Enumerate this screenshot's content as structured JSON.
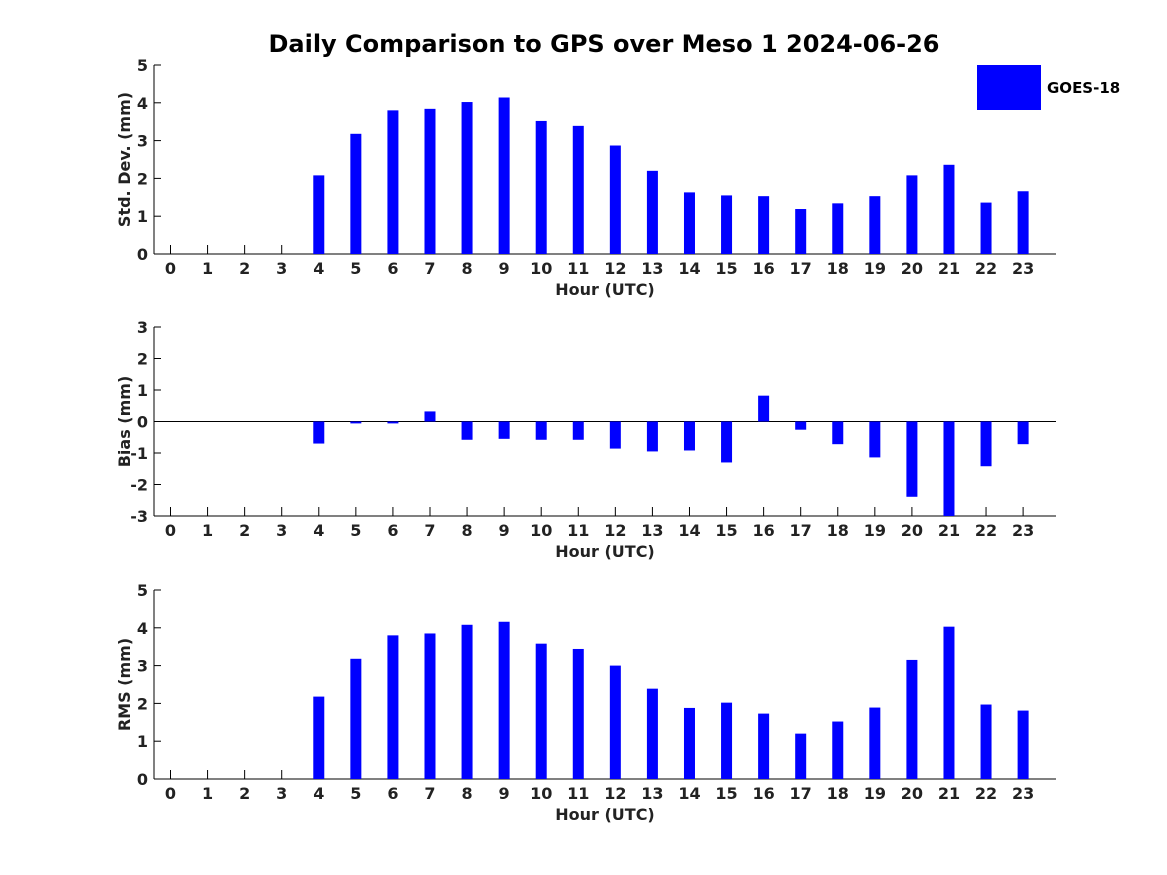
{
  "title": "Daily Comparison to GPS over Meso 1 2024-06-26",
  "legend": {
    "label": "GOES-18",
    "color": "#0000ff"
  },
  "chart_data": [
    {
      "type": "bar",
      "ylabel": "Std. Dev. (mm)",
      "xlabel": "Hour (UTC)",
      "categories": [
        "0",
        "1",
        "2",
        "3",
        "4",
        "5",
        "6",
        "7",
        "8",
        "9",
        "10",
        "11",
        "12",
        "13",
        "14",
        "15",
        "16",
        "17",
        "18",
        "19",
        "20",
        "21",
        "22",
        "23"
      ],
      "series": [
        {
          "name": "GOES-18",
          "values": [
            null,
            null,
            null,
            null,
            2.08,
            3.18,
            3.8,
            3.84,
            4.02,
            4.14,
            3.52,
            3.39,
            2.87,
            2.2,
            1.63,
            1.55,
            1.53,
            1.19,
            1.34,
            1.53,
            2.08,
            2.36,
            1.36,
            1.66
          ]
        }
      ],
      "ylim": [
        0,
        5
      ],
      "yticks": [
        0,
        1,
        2,
        3,
        4,
        5
      ]
    },
    {
      "type": "bar",
      "ylabel": "Bias (mm)",
      "xlabel": "Hour (UTC)",
      "categories": [
        "0",
        "1",
        "2",
        "3",
        "4",
        "5",
        "6",
        "7",
        "8",
        "9",
        "10",
        "11",
        "12",
        "13",
        "14",
        "15",
        "16",
        "17",
        "18",
        "19",
        "20",
        "21",
        "22",
        "23"
      ],
      "series": [
        {
          "name": "GOES-18",
          "values": [
            null,
            null,
            null,
            null,
            -0.7,
            -0.06,
            -0.06,
            0.32,
            -0.58,
            -0.55,
            -0.58,
            -0.58,
            -0.86,
            -0.95,
            -0.92,
            -1.3,
            0.82,
            -0.26,
            -0.72,
            -1.14,
            -2.39,
            -3.0,
            -1.42,
            -0.72
          ]
        }
      ],
      "ylim": [
        -3,
        3
      ],
      "yticks": [
        -3,
        -2,
        -1,
        0,
        1,
        2,
        3
      ]
    },
    {
      "type": "bar",
      "ylabel": "RMS (mm)",
      "xlabel": "Hour (UTC)",
      "categories": [
        "0",
        "1",
        "2",
        "3",
        "4",
        "5",
        "6",
        "7",
        "8",
        "9",
        "10",
        "11",
        "12",
        "13",
        "14",
        "15",
        "16",
        "17",
        "18",
        "19",
        "20",
        "21",
        "22",
        "23"
      ],
      "series": [
        {
          "name": "GOES-18",
          "values": [
            null,
            null,
            null,
            null,
            2.18,
            3.18,
            3.8,
            3.85,
            4.08,
            4.16,
            3.58,
            3.44,
            3.0,
            2.39,
            1.88,
            2.02,
            1.73,
            1.2,
            1.52,
            1.89,
            3.15,
            4.03,
            1.97,
            1.81
          ]
        }
      ],
      "ylim": [
        0,
        5
      ],
      "yticks": [
        0,
        1,
        2,
        3,
        4,
        5
      ]
    }
  ]
}
